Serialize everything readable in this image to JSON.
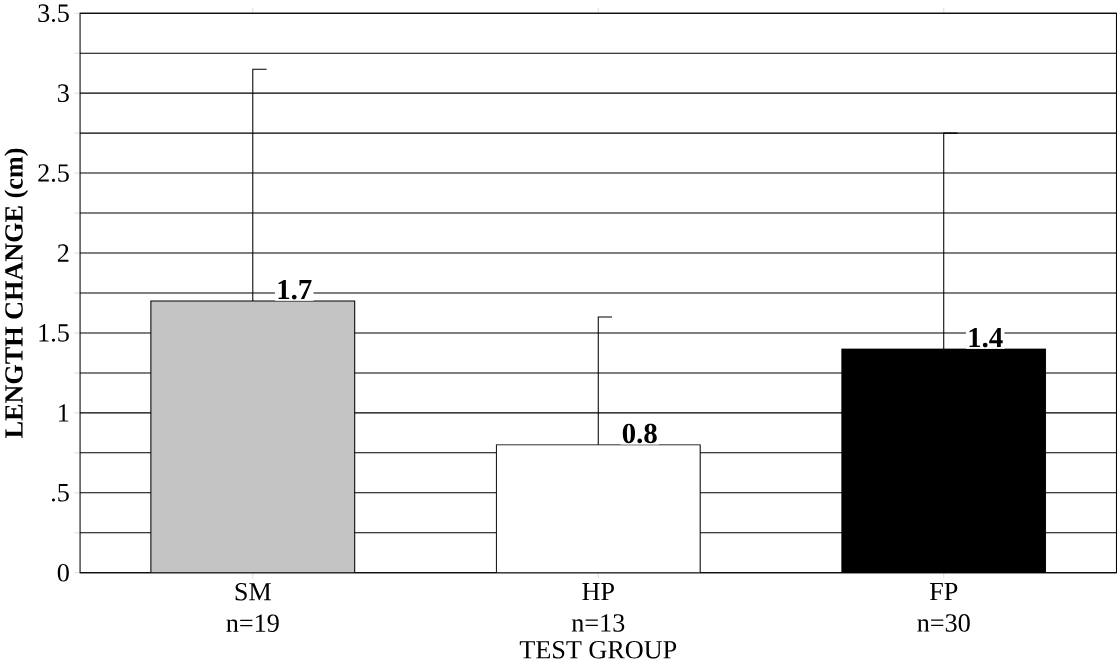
{
  "chart_data": {
    "type": "bar",
    "xlabel": "TEST GROUP",
    "ylabel": "LENGTH CHANGE (cm)",
    "categories": [
      "SM\nn=19",
      "HP\nn=13",
      "FP\nn=30"
    ],
    "values": [
      1.7,
      0.8,
      1.4
    ],
    "colors": [
      "#c4c4c4",
      "#ffffff",
      "#000000"
    ],
    "errors": [
      [
        1.7,
        3.15
      ],
      [
        0.8,
        1.6
      ],
      [
        1.4,
        2.75
      ]
    ],
    "data_labels": true,
    "ylim": [
      0,
      3.5
    ],
    "yticks": [
      0,
      {
        "value": 0.25,
        "label": null
      },
      {
        "value": 0.5,
        "label": ".5"
      },
      {
        "value": 0.75,
        "label": null
      },
      1,
      {
        "value": 1.25,
        "label": null
      },
      1.5,
      {
        "value": 1.75,
        "label": null
      },
      2,
      {
        "value": 2.25,
        "label": null
      },
      2.5,
      {
        "value": 2.75,
        "label": null
      },
      3,
      {
        "value": 3.25,
        "label": null
      },
      3.5
    ],
    "grid": "y"
  }
}
